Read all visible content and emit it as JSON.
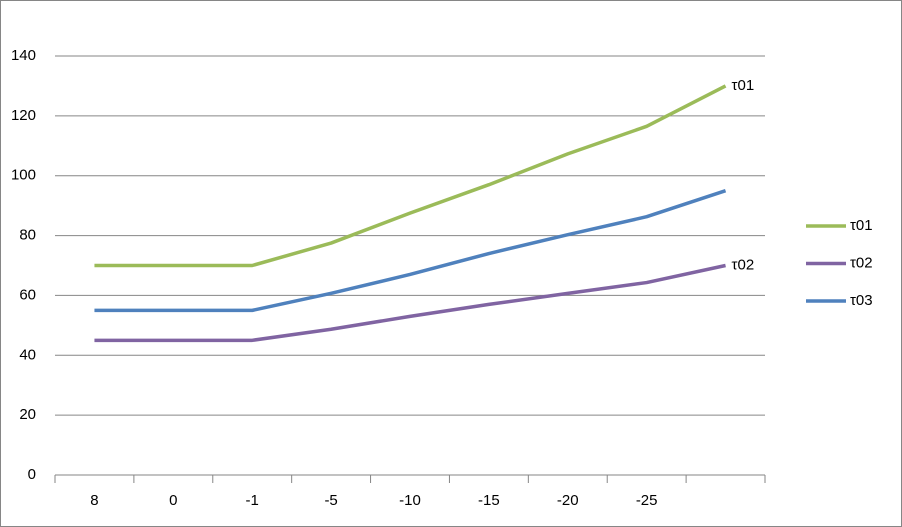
{
  "chart_data": {
    "type": "line",
    "categories": [
      "8",
      "0",
      "-1",
      "-5",
      "-10",
      "-15",
      "-20",
      "-25",
      null
    ],
    "series": [
      {
        "name": "τ01",
        "color": "#9bbb59",
        "end_label": "τ01",
        "values": [
          70,
          70,
          70,
          77.5,
          87.5,
          97,
          107.3,
          116.5,
          130
        ]
      },
      {
        "name": "τ02",
        "color": "#8064a2",
        "end_label": "τ02",
        "values": [
          45,
          45,
          45,
          48.7,
          53,
          57,
          60.7,
          64.3,
          70
        ]
      },
      {
        "name": "τ03",
        "color": "#4f81bd",
        "values": [
          55,
          55,
          55,
          60.7,
          67,
          74,
          80.3,
          86.3,
          95
        ]
      }
    ],
    "ylim": [
      0,
      140
    ],
    "yticks": [
      0,
      20,
      40,
      60,
      80,
      100,
      120,
      140
    ],
    "grid": true,
    "legend": "right"
  }
}
